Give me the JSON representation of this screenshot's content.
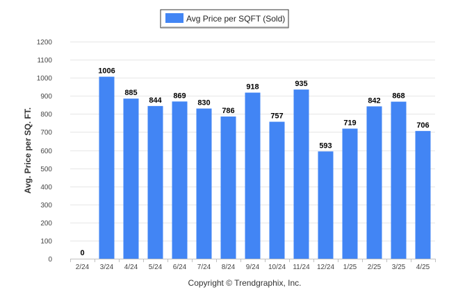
{
  "chart_data": {
    "type": "bar",
    "categories": [
      "2/24",
      "3/24",
      "4/24",
      "5/24",
      "6/24",
      "7/24",
      "8/24",
      "9/24",
      "10/24",
      "11/24",
      "12/24",
      "1/25",
      "2/25",
      "3/25",
      "4/25"
    ],
    "series": [
      {
        "name": "Avg Price per SQFT (Sold)",
        "values": [
          0,
          1006,
          885,
          844,
          869,
          830,
          786,
          918,
          757,
          935,
          593,
          719,
          842,
          868,
          706
        ],
        "color": "#4285f4"
      }
    ],
    "ylabel": "Avg. Price per SQ. FT.",
    "xlabel": "",
    "ylim": [
      0,
      1200
    ],
    "yticks": [
      0,
      100,
      200,
      300,
      400,
      500,
      600,
      700,
      800,
      900,
      1000,
      1100,
      1200
    ],
    "grid": true,
    "legend_position": "top-center"
  },
  "footer": {
    "text": "Copyright © Trendgraphix, Inc."
  }
}
